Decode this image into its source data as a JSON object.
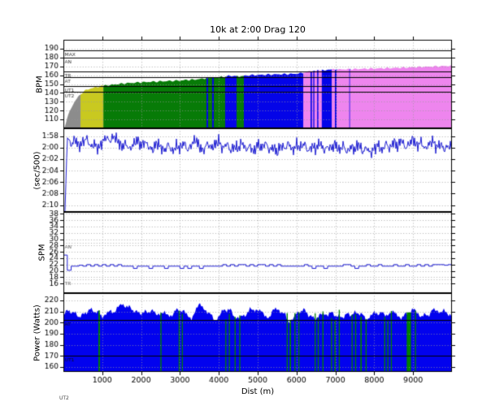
{
  "figure": {
    "title": "10k at 2:00 Drag 120",
    "xlabel": "Dist (m)",
    "xlim": [
      0,
      10000
    ],
    "xticks": [
      1000,
      2000,
      3000,
      4000,
      5000,
      6000,
      7000,
      8000,
      9000
    ],
    "corner_label": "UT2"
  },
  "colors": {
    "hr_zones": {
      "gray": "#8c8c8c",
      "yellow": "#c9c920",
      "green": "#077b07",
      "blue": "#0404e8",
      "pink": "#ee85ee"
    },
    "trace": "#1e1ed2",
    "power_fill": "#0202ee",
    "power_alt": "#008000",
    "grid": "#9a9a9a",
    "zone_line": "#000000"
  },
  "chart_data": [
    {
      "type": "area",
      "name": "heart-rate",
      "ylabel": "BPM",
      "ylim": [
        200,
        100
      ],
      "yticks": [
        110,
        120,
        130,
        140,
        150,
        160,
        170,
        180,
        190
      ],
      "x_start": 0,
      "x_step": 100,
      "zone_lines": [
        {
          "label": "MAX",
          "value": 188
        },
        {
          "label": "AN",
          "value": 179.5
        },
        {
          "label": "TR",
          "value": 164.5
        },
        {
          "label": "AT",
          "value": 158
        },
        {
          "label": "UT1",
          "value": 148
        },
        {
          "label": "UT2",
          "value": 141
        }
      ],
      "zone_fills": [
        [
          0,
          440,
          "gray"
        ],
        [
          440,
          1030,
          "yellow"
        ],
        [
          1030,
          3682,
          "green"
        ],
        [
          3682,
          3724,
          "blue"
        ],
        [
          3724,
          3828,
          "green"
        ],
        [
          3828,
          3870,
          "blue"
        ],
        [
          3870,
          4163,
          "green"
        ],
        [
          4163,
          4456,
          "blue"
        ],
        [
          4456,
          4644,
          "green"
        ],
        [
          4644,
          6172,
          "blue"
        ],
        [
          6172,
          6360,
          "pink"
        ],
        [
          6360,
          6395,
          "blue"
        ],
        [
          6395,
          6430,
          "pink"
        ],
        [
          6430,
          6458,
          "blue"
        ],
        [
          6458,
          6530,
          "pink"
        ],
        [
          6530,
          6562,
          "blue"
        ],
        [
          6562,
          6650,
          "pink"
        ],
        [
          6650,
          6905,
          "blue"
        ],
        [
          6905,
          6988,
          "pink"
        ],
        [
          6988,
          7030,
          "blue"
        ],
        [
          7030,
          7358,
          "pink"
        ],
        [
          7358,
          7374,
          "blue"
        ],
        [
          7374,
          10000,
          "pink"
        ]
      ],
      "values": [
        97,
        112,
        123,
        131,
        136.5,
        141,
        143.5,
        145,
        146,
        147,
        147.8,
        148.4,
        149,
        149.5,
        150,
        150.4,
        150.8,
        151.1,
        151.4,
        151.7,
        152,
        152.2,
        152.4,
        152.6,
        152.8,
        153,
        153.2,
        153.4,
        153.6,
        153.8,
        154,
        154.3,
        154.6,
        154.9,
        155.2,
        155.6,
        156,
        157.2,
        157.6,
        157.1,
        157.5,
        158,
        158.8,
        159.3,
        159,
        158.6,
        158.9,
        159.6,
        160,
        160.2,
        160.3,
        160.5,
        160.6,
        160.7,
        160.8,
        160.9,
        161,
        161.2,
        161.3,
        161.5,
        161.6,
        162,
        163,
        164,
        164.5,
        165,
        165.3,
        165.6,
        166,
        166.2,
        166.4,
        166.5,
        166.6,
        166.7,
        166.8,
        166.9,
        167,
        167.2,
        167.3,
        167.4,
        167.5,
        167.7,
        167.8,
        167.9,
        168,
        168.2,
        168.3,
        168.5,
        168.6,
        168.8,
        169,
        169.2,
        169.3,
        169.5,
        169.6,
        169.8,
        170,
        170.1,
        170.3,
        170.4,
        170.5
      ]
    },
    {
      "type": "line",
      "name": "pace",
      "ylabel": "(sec/500)",
      "ylim": [
        116.6,
        131.2
      ],
      "yticks": [
        {
          "value": 118,
          "label": "1:58"
        },
        {
          "value": 120,
          "label": "2:00"
        },
        {
          "value": 122,
          "label": "2:02"
        },
        {
          "value": 124,
          "label": "2:04"
        },
        {
          "value": 126,
          "label": "2:06"
        },
        {
          "value": 128,
          "label": "2:08"
        },
        {
          "value": 130,
          "label": "2:10"
        }
      ],
      "x_start": 0,
      "x_step": 100,
      "values": [
        140,
        118.2,
        119.6,
        118.4,
        119.8,
        119.0,
        118.3,
        119.9,
        119.3,
        120.2,
        119.0,
        118.1,
        118.9,
        117.9,
        118.8,
        119.9,
        119.2,
        120.3,
        119.4,
        118.6,
        119.7,
        118.9,
        119.9,
        120.4,
        119.1,
        119.8,
        120.6,
        119.3,
        120.8,
        119.6,
        120.2,
        119.0,
        120.5,
        119.4,
        118.5,
        119.8,
        120.6,
        119.2,
        120.0,
        119.5,
        118.7,
        120.3,
        119.1,
        120.6,
        119.7,
        120.2,
        119.0,
        120.4,
        119.6,
        120.8,
        119.3,
        120.1,
        119.0,
        120.5,
        119.8,
        120.9,
        119.5,
        120.2,
        119.1,
        120.6,
        119.4,
        120.0,
        119.2,
        120.7,
        119.6,
        120.3,
        119.0,
        120.5,
        119.8,
        120.1,
        119.3,
        120.6,
        119.5,
        120.9,
        119.7,
        120.4,
        119.2,
        120.8,
        119.9,
        121.0,
        120.2,
        119.4,
        120.7,
        119.1,
        120.3,
        118.8,
        119.9,
        118.5,
        120.1,
        119.3,
        118.4,
        119.8,
        118.9,
        120.2,
        119.5,
        118.7,
        120.0,
        119.2,
        120.4,
        119.6,
        119.9
      ]
    },
    {
      "type": "line",
      "name": "stroke-rate",
      "ylabel": "SPM",
      "ylim": [
        38.6,
        13
      ],
      "yticks": [
        16,
        18,
        20,
        22,
        24,
        26,
        28,
        30,
        32,
        34,
        36,
        38
      ],
      "x_start": 0,
      "x_step": 100,
      "zone_lines": [
        {
          "label": "AN",
          "value": 29
        },
        {
          "label": "TR",
          "value": 17.3
        }
      ],
      "values": [
        25,
        20.2,
        21.5,
        21.5,
        21.8,
        21.5,
        22,
        21.5,
        22,
        21.5,
        22,
        21.5,
        22,
        21.5,
        22,
        21.5,
        21.5,
        21.5,
        20.8,
        21.5,
        21.5,
        21.5,
        20.8,
        21.5,
        21.5,
        21.5,
        20.8,
        21.5,
        21.5,
        21.5,
        20.8,
        21.5,
        20.8,
        21.5,
        21.5,
        20.8,
        21.5,
        21.5,
        21.5,
        21.5,
        21.5,
        22,
        21.5,
        22,
        21.5,
        22,
        22,
        21.5,
        22,
        21.5,
        22,
        22,
        21.5,
        22,
        21.5,
        22,
        21.5,
        21.5,
        21.5,
        21.5,
        21.5,
        21.5,
        22,
        21.5,
        20.8,
        21.5,
        21.5,
        20.8,
        21.5,
        21.5,
        21.5,
        21.5,
        22,
        22,
        21.5,
        20.8,
        21.5,
        21.5,
        22,
        21.5,
        21.5,
        22,
        21.5,
        21.5,
        21.5,
        22,
        21.5,
        21.5,
        22,
        21.5,
        21.5,
        22,
        21.5,
        22,
        21.5,
        22,
        22,
        22,
        21.8,
        22,
        21.8
      ]
    },
    {
      "type": "area",
      "name": "power",
      "ylabel": "Power (Watts)",
      "ylim": [
        226.5,
        155.5
      ],
      "yticks": [
        160,
        170,
        180,
        190,
        200,
        210,
        220
      ],
      "x_start": 0,
      "x_step": 100,
      "zone_lines": [
        {
          "label": "AT",
          "value": 202
        },
        {
          "label": "UT1",
          "value": 170
        }
      ],
      "green_strokes": [
        [
          920,
          40
        ],
        [
          2510,
          30
        ],
        [
          2980,
          22
        ],
        [
          3060,
          22
        ],
        [
          4180,
          22
        ],
        [
          4270,
          22
        ],
        [
          4420,
          28
        ],
        [
          4540,
          22
        ],
        [
          5760,
          28
        ],
        [
          5840,
          36
        ],
        [
          5960,
          28
        ],
        [
          6060,
          22
        ],
        [
          6480,
          22
        ],
        [
          6560,
          22
        ],
        [
          6680,
          28
        ],
        [
          6900,
          28
        ],
        [
          6990,
          32
        ],
        [
          7100,
          22
        ],
        [
          7430,
          22
        ],
        [
          7520,
          28
        ],
        [
          7660,
          36
        ],
        [
          7790,
          28
        ],
        [
          8270,
          28
        ],
        [
          8350,
          28
        ],
        [
          8440,
          22
        ],
        [
          8890,
          110
        ],
        [
          9060,
          28
        ]
      ],
      "values": [
        205,
        209,
        207,
        211,
        206,
        210,
        208,
        212,
        207,
        210,
        205,
        209,
        212,
        208,
        214,
        216,
        213,
        215,
        210,
        212,
        208,
        211,
        207,
        210,
        206,
        209,
        212,
        208,
        205,
        210,
        207,
        211,
        209,
        206,
        212,
        215,
        209,
        207,
        210,
        205,
        208,
        211,
        206,
        209,
        204,
        208,
        211,
        207,
        210,
        206,
        209,
        213,
        210,
        207,
        211,
        208,
        205,
        209,
        203,
        207,
        210,
        206,
        209,
        204,
        208,
        206,
        210,
        207,
        203,
        208,
        205,
        209,
        206,
        210,
        204,
        208,
        206,
        209,
        203,
        207,
        210,
        206,
        209,
        205,
        208,
        211,
        207,
        204,
        209,
        206,
        212,
        208,
        205,
        210,
        207,
        213,
        209,
        206,
        211,
        208,
        210
      ]
    }
  ]
}
